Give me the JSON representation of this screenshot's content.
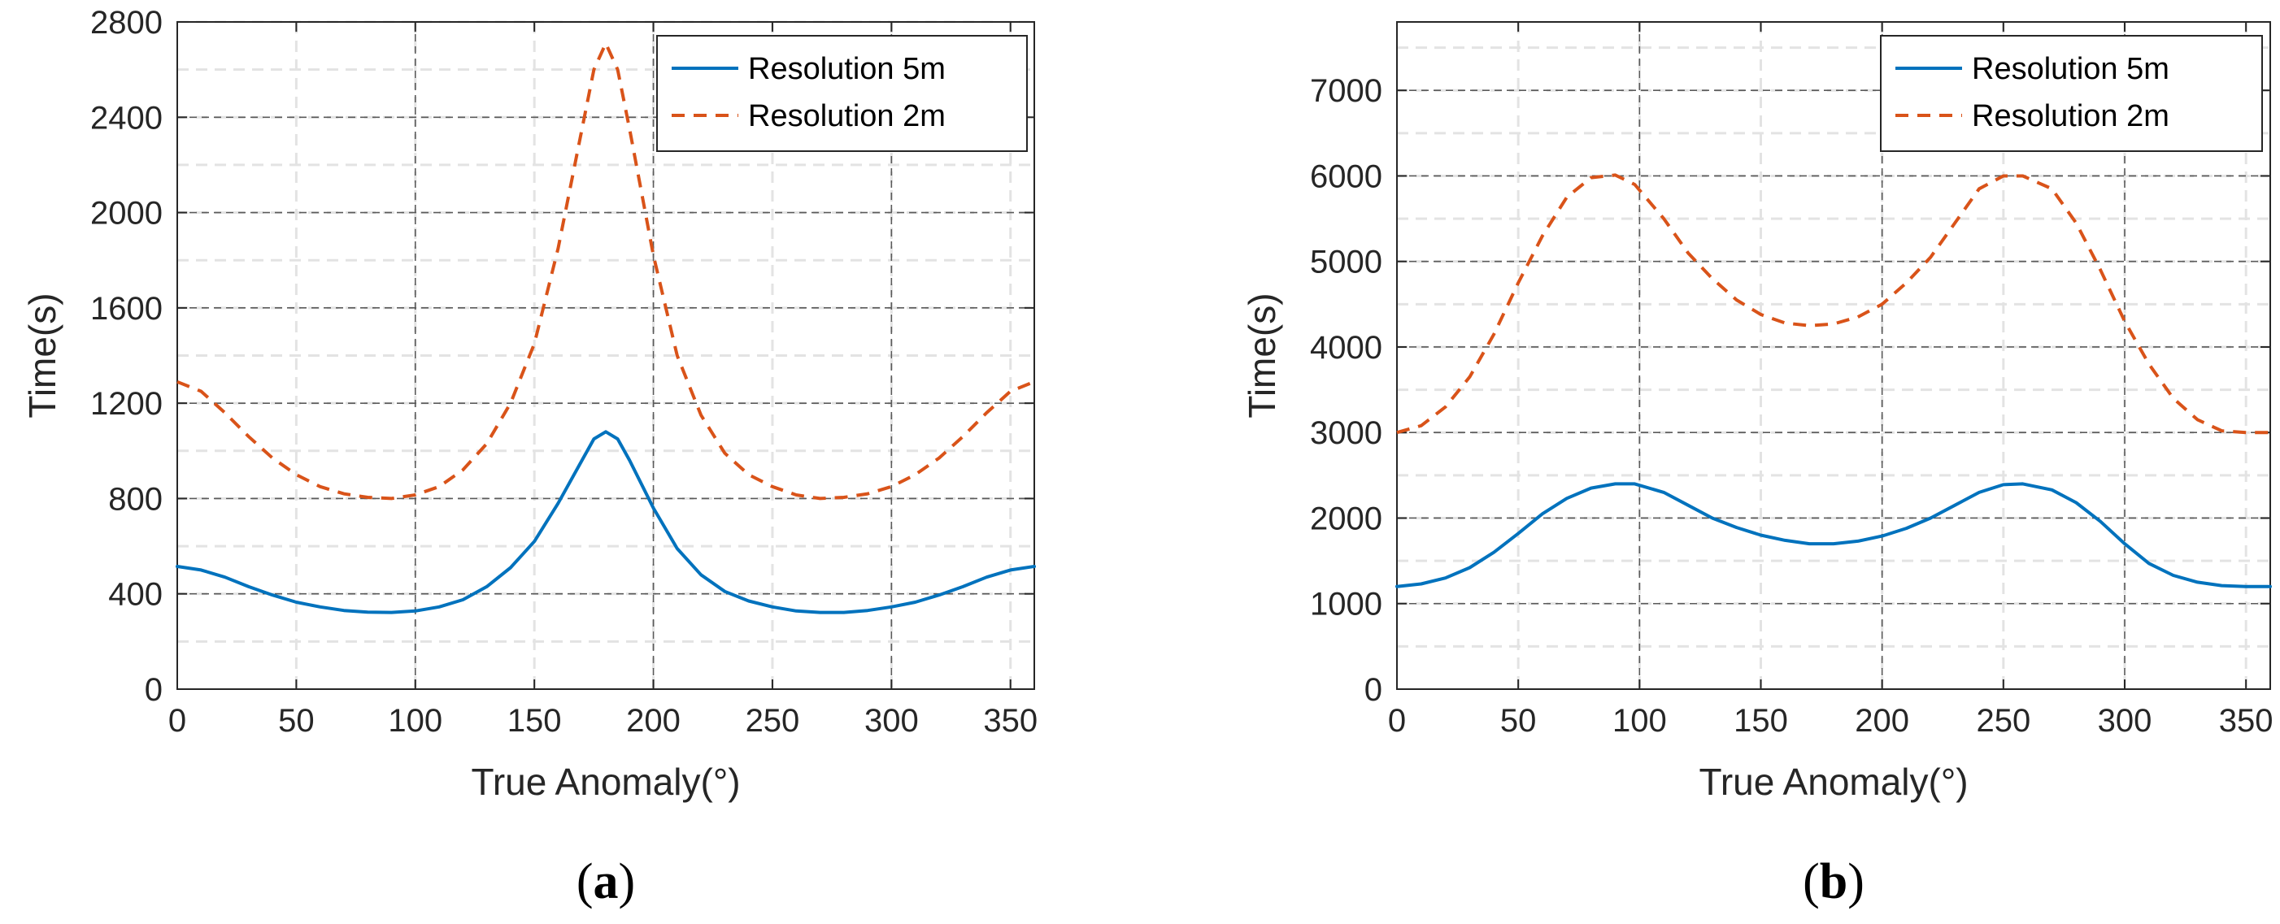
{
  "chart_data": [
    {
      "type": "line",
      "panel_label": "a",
      "xlabel": "True Anomaly(°)",
      "ylabel": "Time(s)",
      "xlim": [
        0,
        360
      ],
      "ylim": [
        0,
        2800
      ],
      "xticks": [
        0,
        50,
        100,
        150,
        200,
        250,
        300,
        350
      ],
      "yticks": [
        0,
        400,
        800,
        1200,
        1600,
        2000,
        2400,
        2800
      ],
      "x": [
        0,
        10,
        20,
        30,
        40,
        50,
        60,
        70,
        80,
        90,
        100,
        110,
        120,
        130,
        140,
        150,
        160,
        170,
        175,
        180,
        185,
        190,
        200,
        210,
        220,
        230,
        240,
        250,
        260,
        270,
        280,
        290,
        300,
        310,
        320,
        330,
        340,
        350,
        360
      ],
      "series": [
        {
          "name": "Resolution 5m",
          "color": "#0072BD",
          "dash": "solid",
          "values": [
            515,
            500,
            470,
            430,
            395,
            365,
            345,
            330,
            323,
            322,
            328,
            345,
            375,
            430,
            510,
            620,
            780,
            960,
            1050,
            1080,
            1050,
            960,
            760,
            590,
            480,
            410,
            370,
            345,
            328,
            322,
            322,
            330,
            345,
            365,
            395,
            430,
            470,
            500,
            515
          ]
        },
        {
          "name": "Resolution 2m",
          "color": "#D95319",
          "dash": "dashed",
          "values": [
            1290,
            1250,
            1160,
            1060,
            970,
            900,
            850,
            820,
            805,
            800,
            815,
            850,
            920,
            1030,
            1200,
            1450,
            1850,
            2350,
            2600,
            2710,
            2600,
            2350,
            1820,
            1400,
            1150,
            990,
            900,
            850,
            815,
            800,
            805,
            820,
            850,
            900,
            970,
            1060,
            1160,
            1250,
            1290
          ]
        }
      ],
      "legend": "top-right",
      "grid": true
    },
    {
      "type": "line",
      "panel_label": "b",
      "xlabel": "True Anomaly(°)",
      "ylabel": "Time(s)",
      "xlim": [
        0,
        360
      ],
      "ylim": [
        0,
        7800
      ],
      "xticks": [
        0,
        50,
        100,
        150,
        200,
        250,
        300,
        350
      ],
      "yticks": [
        0,
        1000,
        2000,
        3000,
        4000,
        5000,
        6000,
        7000
      ],
      "x": [
        0,
        10,
        20,
        30,
        40,
        50,
        60,
        70,
        80,
        90,
        98,
        110,
        120,
        130,
        140,
        150,
        160,
        170,
        180,
        190,
        200,
        210,
        220,
        230,
        240,
        250,
        258,
        270,
        280,
        290,
        300,
        310,
        320,
        330,
        340,
        350,
        360
      ],
      "series": [
        {
          "name": "Resolution 5m",
          "color": "#0072BD",
          "dash": "solid",
          "values": [
            1200,
            1230,
            1300,
            1420,
            1600,
            1820,
            2050,
            2230,
            2350,
            2400,
            2400,
            2300,
            2150,
            2000,
            1890,
            1800,
            1740,
            1700,
            1700,
            1730,
            1790,
            1880,
            2000,
            2150,
            2300,
            2390,
            2400,
            2330,
            2180,
            1960,
            1700,
            1470,
            1330,
            1250,
            1210,
            1200,
            1200
          ]
        },
        {
          "name": "Resolution 2m",
          "color": "#D95319",
          "dash": "dashed",
          "values": [
            3000,
            3080,
            3300,
            3650,
            4150,
            4750,
            5300,
            5750,
            5980,
            6010,
            5900,
            5500,
            5100,
            4800,
            4550,
            4380,
            4280,
            4250,
            4270,
            4350,
            4500,
            4750,
            5050,
            5450,
            5850,
            6000,
            6000,
            5850,
            5450,
            4900,
            4300,
            3800,
            3400,
            3150,
            3020,
            3000,
            3000
          ]
        }
      ],
      "legend": "top-right",
      "grid": true
    }
  ]
}
